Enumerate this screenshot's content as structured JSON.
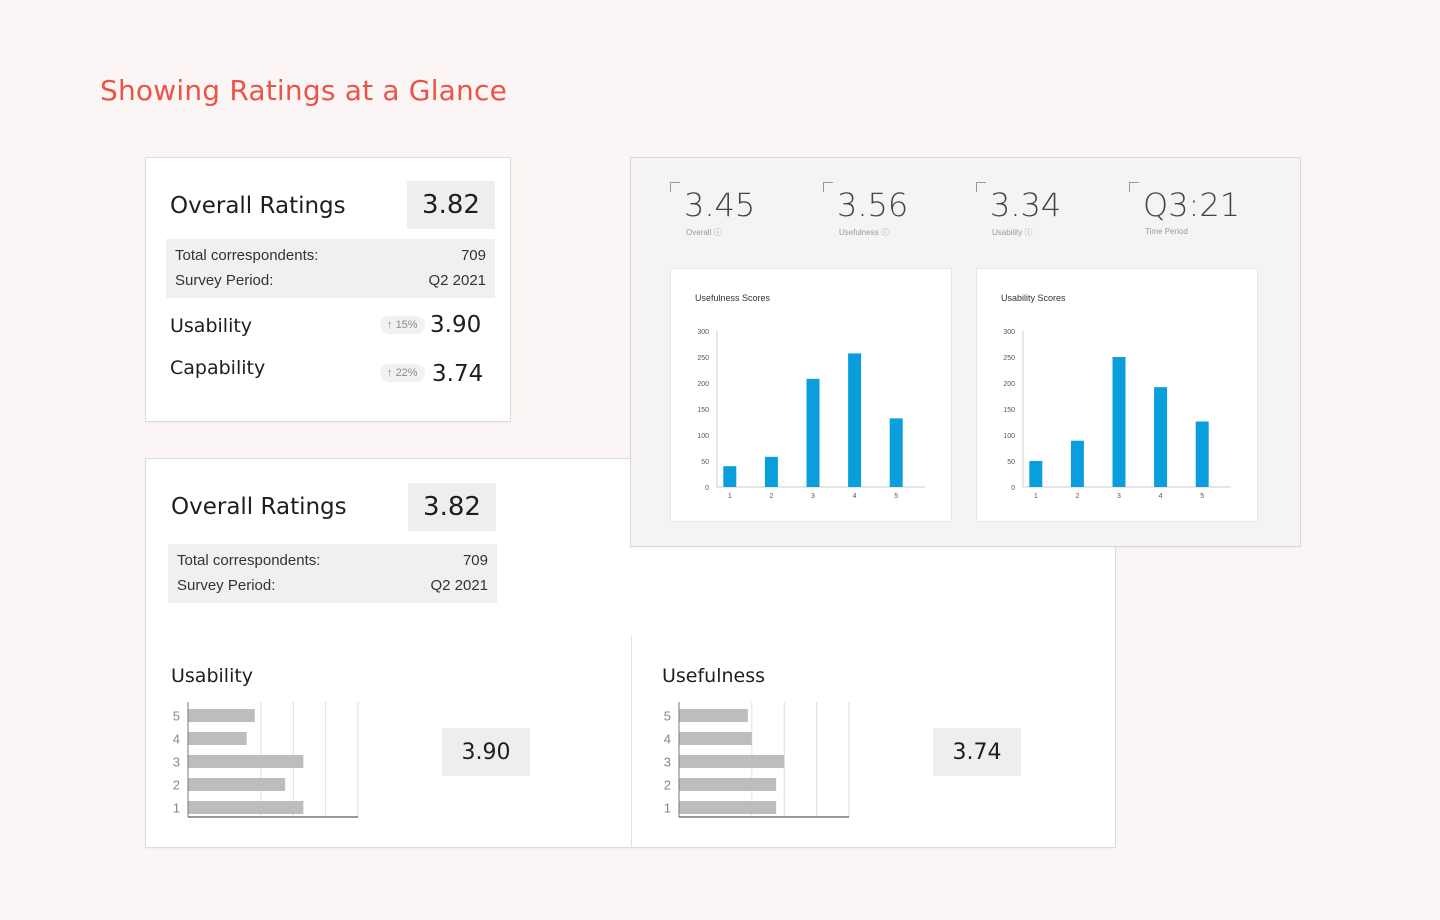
{
  "page_title": "Showing Ratings at a Glance",
  "card1": {
    "title": "Overall Ratings",
    "score": "3.82",
    "info": [
      {
        "label": "Total correspondents:",
        "value": "709"
      },
      {
        "label": "Survey Period:",
        "value": "Q2 2021"
      }
    ],
    "metrics": [
      {
        "label": "Usability",
        "delta": "15%",
        "value": "3.90"
      },
      {
        "label": "Capability",
        "delta": "22%",
        "value": "3.74"
      }
    ]
  },
  "dashboard": {
    "kpis": [
      {
        "value": "3.45",
        "caption": "Overall"
      },
      {
        "value": "3.56",
        "caption": "Usefulness"
      },
      {
        "value": "3.34",
        "caption": "Usability"
      },
      {
        "value": "Q3:21",
        "caption": "Time Period"
      }
    ],
    "colors": {
      "bar": "#0a9fdc"
    }
  },
  "card3": {
    "title": "Overall Ratings",
    "score": "3.82",
    "info": [
      {
        "label": "Total correspondents:",
        "value": "709"
      },
      {
        "label": "Survey Period:",
        "value": "Q2 2021"
      }
    ],
    "sections": [
      {
        "title": "Usability",
        "score": "3.90"
      },
      {
        "title": "Usefulness",
        "score": "3.74"
      }
    ],
    "colors": {
      "bar": "#bdbdbd"
    }
  },
  "chart_data": [
    {
      "type": "bar",
      "title": "Usefulness Scores",
      "categories": [
        "1",
        "2",
        "3",
        "4",
        "5"
      ],
      "values": [
        40,
        58,
        208,
        257,
        132
      ],
      "ylim": [
        0,
        300
      ],
      "yticks": [
        "0",
        "50",
        "100",
        "150",
        "200",
        "250",
        "300"
      ]
    },
    {
      "type": "bar",
      "title": "Usability Scores",
      "categories": [
        "1",
        "2",
        "3",
        "4",
        "5"
      ],
      "values": [
        50,
        89,
        250,
        192,
        126
      ],
      "ylim": [
        0,
        300
      ],
      "yticks": [
        "0",
        "50",
        "100",
        "150",
        "200",
        "250",
        "300"
      ]
    },
    {
      "type": "bar",
      "title": "",
      "orientation": "horizontal",
      "categories": [
        "5",
        "4",
        "3",
        "2",
        "1"
      ],
      "values": [
        16.5,
        14.5,
        28.5,
        24,
        28.5
      ],
      "xlim": [
        0,
        42
      ]
    },
    {
      "type": "bar",
      "title": "",
      "orientation": "horizontal",
      "categories": [
        "5",
        "4",
        "3",
        "2",
        "1"
      ],
      "values": [
        17,
        18,
        26,
        24,
        24
      ],
      "xlim": [
        0,
        42
      ]
    }
  ]
}
